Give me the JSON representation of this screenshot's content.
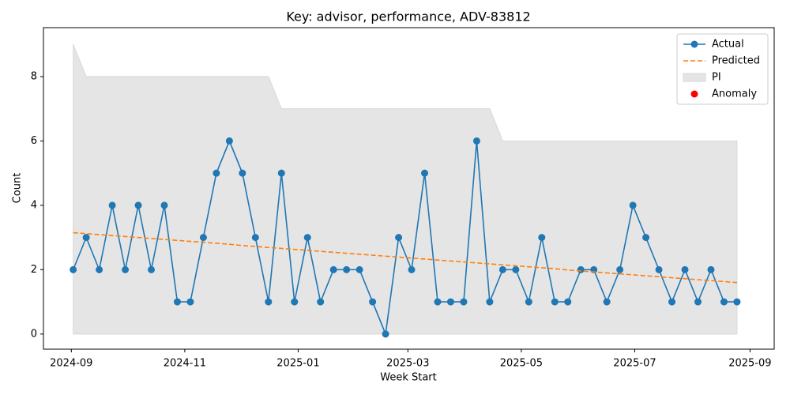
{
  "chart_data": {
    "type": "line",
    "title": "Key: advisor, performance, ADV-83812",
    "xlabel": "Week Start",
    "ylabel": "Count",
    "x": [
      "2024-09-02",
      "2024-09-09",
      "2024-09-16",
      "2024-09-23",
      "2024-09-30",
      "2024-10-07",
      "2024-10-14",
      "2024-10-21",
      "2024-10-28",
      "2024-11-04",
      "2024-11-11",
      "2024-11-18",
      "2024-11-25",
      "2024-12-02",
      "2024-12-09",
      "2024-12-16",
      "2024-12-23",
      "2024-12-30",
      "2025-01-06",
      "2025-01-13",
      "2025-01-20",
      "2025-01-27",
      "2025-02-03",
      "2025-02-10",
      "2025-02-17",
      "2025-02-24",
      "2025-03-03",
      "2025-03-10",
      "2025-03-17",
      "2025-03-24",
      "2025-03-31",
      "2025-04-07",
      "2025-04-14",
      "2025-04-21",
      "2025-04-28",
      "2025-05-05",
      "2025-05-12",
      "2025-05-19",
      "2025-05-26",
      "2025-06-02",
      "2025-06-09",
      "2025-06-16",
      "2025-06-23",
      "2025-06-30",
      "2025-07-07",
      "2025-07-14",
      "2025-07-21",
      "2025-07-28",
      "2025-08-04",
      "2025-08-11",
      "2025-08-18",
      "2025-08-25"
    ],
    "series": [
      {
        "name": "Actual",
        "kind": "line",
        "marker": "o",
        "color": "#1f77b4",
        "values": [
          2,
          3,
          2,
          4,
          2,
          4,
          2,
          4,
          1,
          1,
          3,
          5,
          6,
          5,
          3,
          1,
          5,
          1,
          3,
          1,
          2,
          2,
          2,
          1,
          0,
          3,
          2,
          5,
          1,
          1,
          1,
          6,
          1,
          2,
          2,
          1,
          3,
          1,
          1,
          2,
          2,
          1,
          2,
          4,
          3,
          2,
          1,
          2,
          1,
          2,
          1,
          1
        ]
      },
      {
        "name": "Predicted",
        "kind": "line",
        "linestyle": "dashed",
        "color": "#ff7f0e",
        "values": [
          3.15,
          3.12,
          3.09,
          3.06,
          3.03,
          3.0,
          2.97,
          2.94,
          2.91,
          2.88,
          2.85,
          2.82,
          2.79,
          2.75,
          2.72,
          2.69,
          2.66,
          2.63,
          2.6,
          2.57,
          2.54,
          2.51,
          2.48,
          2.45,
          2.42,
          2.39,
          2.36,
          2.33,
          2.3,
          2.27,
          2.24,
          2.21,
          2.18,
          2.15,
          2.12,
          2.09,
          2.06,
          2.03,
          1.99,
          1.96,
          1.93,
          1.9,
          1.87,
          1.84,
          1.81,
          1.78,
          1.75,
          1.72,
          1.69,
          1.66,
          1.63,
          1.6
        ]
      },
      {
        "name": "PI",
        "kind": "band",
        "color": "#e5e5e5",
        "lower": [
          0,
          0,
          0,
          0,
          0,
          0,
          0,
          0,
          0,
          0,
          0,
          0,
          0,
          0,
          0,
          0,
          0,
          0,
          0,
          0,
          0,
          0,
          0,
          0,
          0,
          0,
          0,
          0,
          0,
          0,
          0,
          0,
          0,
          0,
          0,
          0,
          0,
          0,
          0,
          0,
          0,
          0,
          0,
          0,
          0,
          0,
          0,
          0,
          0,
          0,
          0,
          0
        ],
        "upper": [
          9,
          8,
          8,
          8,
          8,
          8,
          8,
          8,
          8,
          8,
          8,
          8,
          8,
          8,
          8,
          8,
          7,
          7,
          7,
          7,
          7,
          7,
          7,
          7,
          7,
          7,
          7,
          7,
          7,
          7,
          7,
          7,
          7,
          6,
          6,
          6,
          6,
          6,
          6,
          6,
          6,
          6,
          6,
          6,
          6,
          6,
          6,
          6,
          6,
          6,
          6,
          6
        ]
      },
      {
        "name": "Anomaly",
        "kind": "scatter",
        "color": "#ff0000",
        "values": [
          null,
          null,
          null,
          null,
          null,
          null,
          null,
          null,
          null,
          null,
          null,
          null,
          null,
          null,
          null,
          null,
          null,
          null,
          null,
          null,
          null,
          null,
          null,
          null,
          null,
          null,
          null,
          null,
          null,
          null,
          null,
          null,
          null,
          null,
          null,
          null,
          null,
          null,
          null,
          null,
          null,
          null,
          null,
          null,
          null,
          null,
          null,
          null,
          null,
          null,
          null,
          null
        ]
      }
    ],
    "xlim": [
      "2024-08-17",
      "2025-09-14"
    ],
    "xticks": [
      "2024-09",
      "2024-11",
      "2025-01",
      "2025-03",
      "2025-05",
      "2025-07",
      "2025-09"
    ],
    "ylim": [
      -0.47,
      9.52
    ],
    "yticks": [
      0,
      2,
      4,
      6,
      8
    ],
    "legend": "upper right"
  }
}
